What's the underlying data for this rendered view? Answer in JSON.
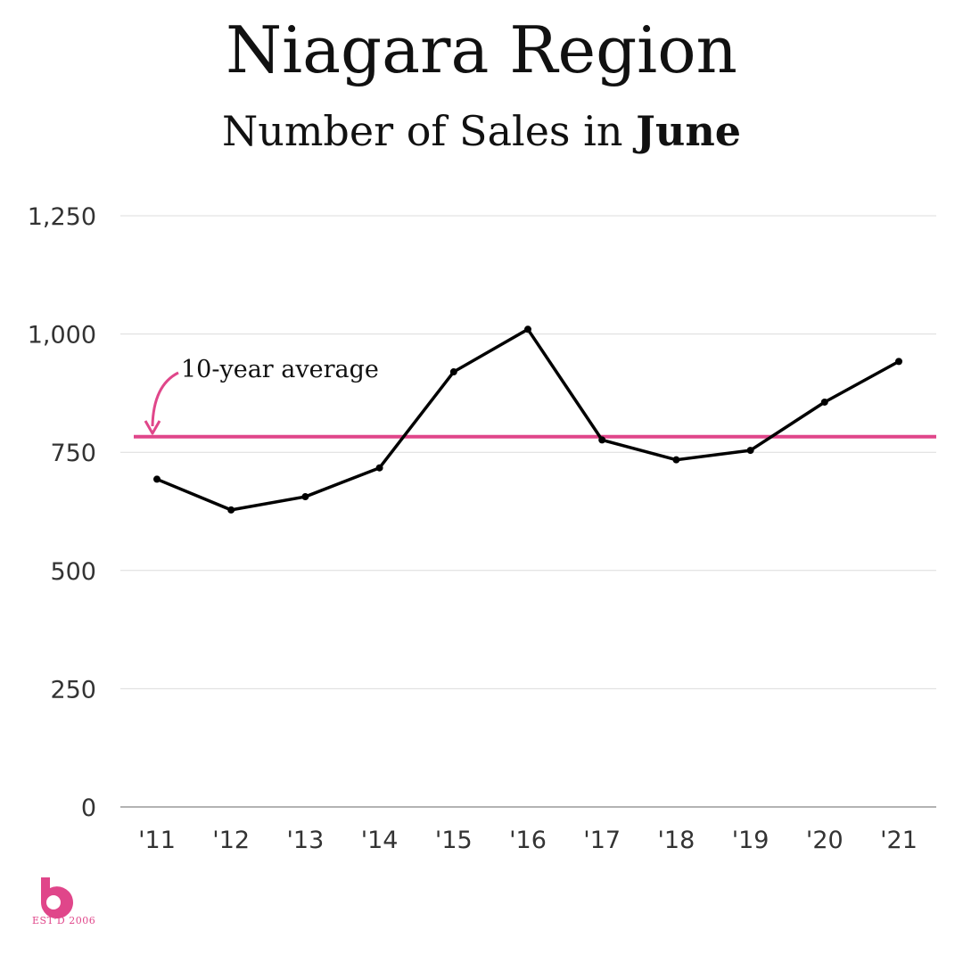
{
  "chart_data": {
    "type": "line",
    "title": "Niagara Region",
    "subtitle_prefix": "Number of Sales in ",
    "subtitle_bold": "June",
    "categories": [
      "'11",
      "'12",
      "'13",
      "'14",
      "'15",
      "'16",
      "'17",
      "'18",
      "'19",
      "'20",
      "'21"
    ],
    "series": [
      {
        "values": [
          693,
          628,
          656,
          717,
          920,
          1010,
          776,
          734,
          754,
          856,
          942
        ]
      }
    ],
    "yticks": [
      0,
      250,
      500,
      750,
      1000,
      1250
    ],
    "ytick_labels": [
      "0",
      "250",
      "500",
      "750",
      "1,000",
      "1,250"
    ],
    "ylim": [
      0,
      1250
    ],
    "grid": true,
    "reference_line": {
      "label": "10-year average",
      "value": 783,
      "color": "#e0468a"
    },
    "line_color": "#000000"
  },
  "brand": {
    "logo_letter": "b",
    "est_text": "EST'D 2006",
    "color": "#e0468a"
  }
}
